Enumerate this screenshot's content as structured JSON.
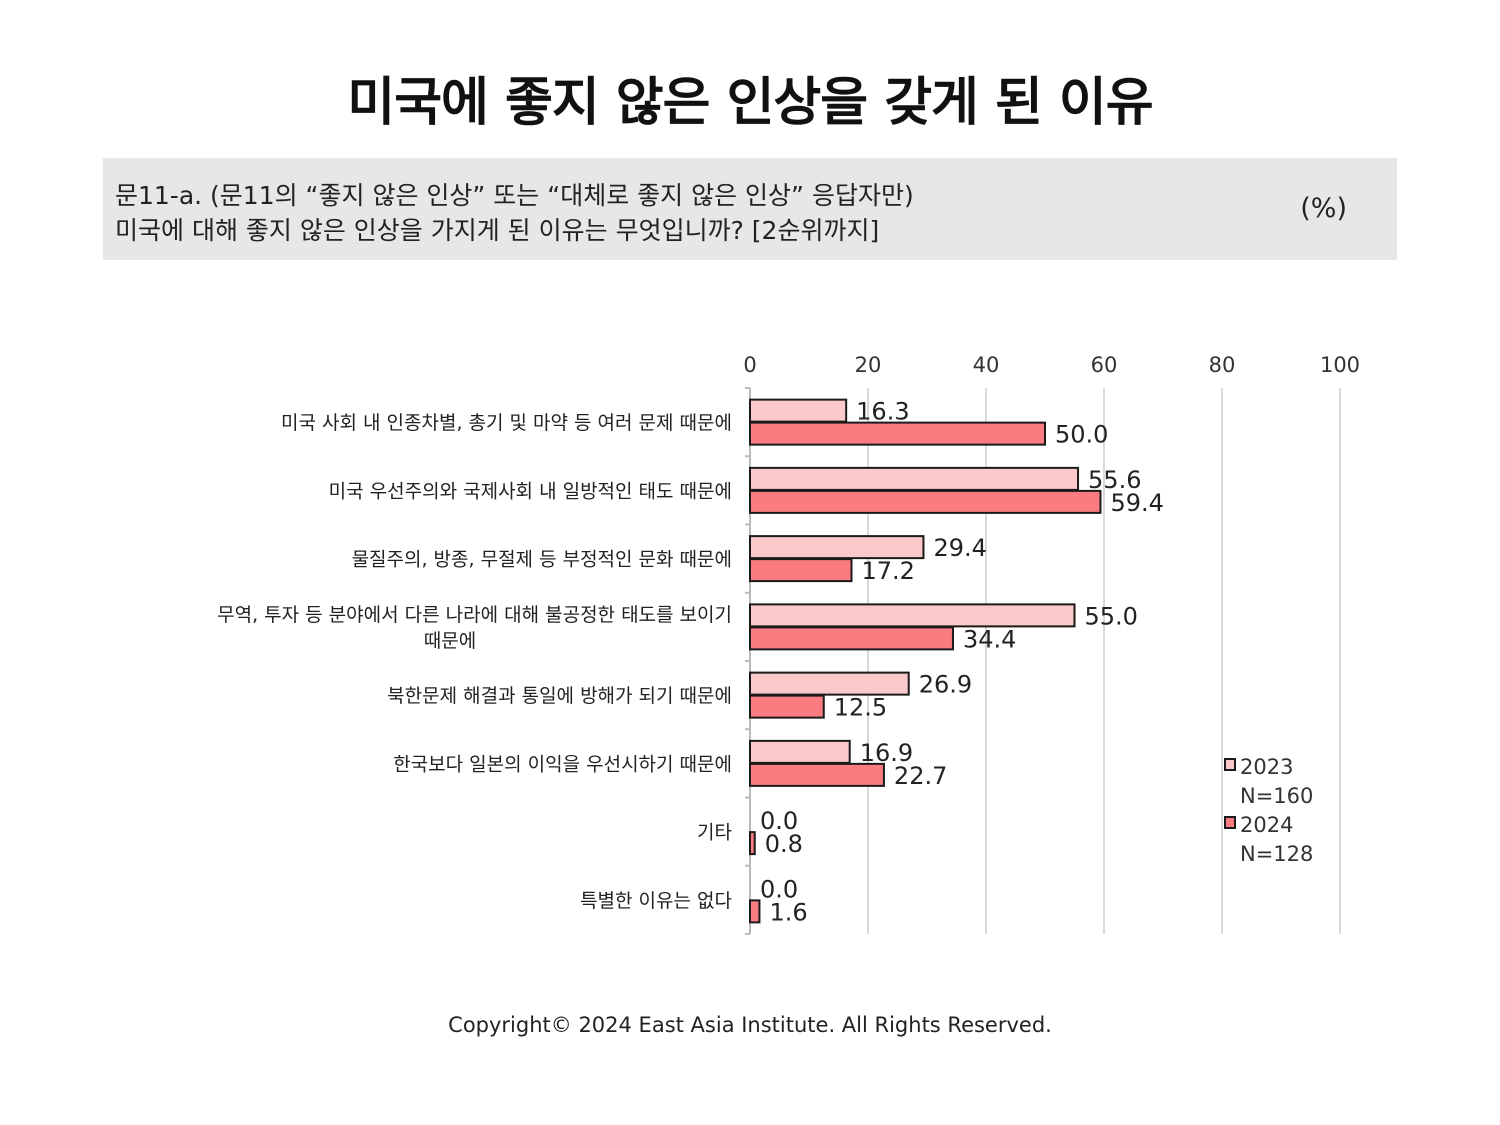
{
  "title": "미국에 좋지 않은 인상을 갖게 된 이유",
  "question": {
    "line1": "문11-a. (문11의 “좋지 않은 인상” 또는 “대체로 좋지 않은 인상” 응답자만)",
    "line2": "미국에 대해 좋지 않은 인상을 가지게 된 이유는 무엇입니까? [2순위까지]",
    "unit": "(%)"
  },
  "footer": "Copyright© 2024 East Asia Institute. All Rights Reserved.",
  "colors": {
    "series2023": "#fcc9cb",
    "series2024": "#fb7c80",
    "border": "#1a1a1a",
    "grid": "#d9d9d9"
  },
  "chart_data": {
    "type": "bar",
    "orientation": "horizontal",
    "xlim": [
      0,
      100
    ],
    "ticks": [
      0,
      20,
      40,
      60,
      80,
      100
    ],
    "tick_labels": [
      "0",
      "20",
      "40",
      "60",
      "80",
      "100"
    ],
    "axis_position": "top",
    "grid": true,
    "legend_position": "right-bottom",
    "categories": [
      [
        "미국 사회 내 인종차별, 총기 및 마약 등 여러 문제 때문에"
      ],
      [
        "미국 우선주의와 국제사회 내 일방적인 태도 때문에"
      ],
      [
        "물질주의, 방종, 무절제 등 부정적인 문화 때문에"
      ],
      [
        "무역, 투자 등 분야에서 다른 나라에 대해 불공정한 태도를 보이기",
        "때문에"
      ],
      [
        "북한문제 해결과 통일에 방해가 되기 때문에"
      ],
      [
        "한국보다 일본의 이익을 우선시하기 때문에"
      ],
      [
        "기타"
      ],
      [
        "특별한 이유는 없다"
      ]
    ],
    "series": [
      {
        "name": "2023",
        "sublabel": "N=160",
        "values": [
          16.3,
          55.6,
          29.4,
          55.0,
          26.9,
          16.9,
          0.0,
          0.0
        ],
        "labels": [
          "16.3",
          "55.6",
          "29.4",
          "55.0",
          "26.9",
          "16.9",
          "0.0",
          "0.0"
        ]
      },
      {
        "name": "2024",
        "sublabel": "N=128",
        "values": [
          50.0,
          59.4,
          17.2,
          34.4,
          12.5,
          22.7,
          0.8,
          1.6
        ],
        "labels": [
          "50.0",
          "59.4",
          "17.2",
          "34.4",
          "12.5",
          "22.7",
          "0.8",
          "1.6"
        ]
      }
    ]
  }
}
